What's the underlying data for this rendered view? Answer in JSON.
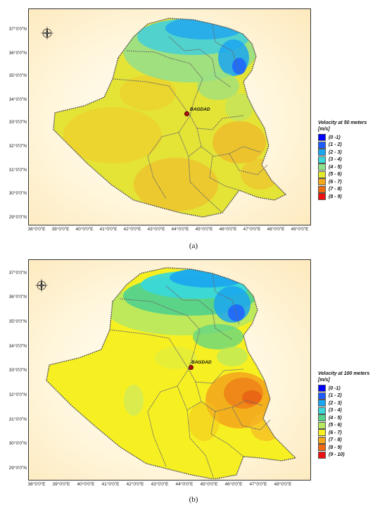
{
  "panels": [
    {
      "caption": "(a)",
      "city": "BAGDAD",
      "legend_title": "Velocity at 50 meters",
      "legend_unit": "[m/s]",
      "legend": [
        {
          "label": "(0 -1)",
          "color": "#0000ff"
        },
        {
          "label": "(1 - 2)",
          "color": "#1e5cff"
        },
        {
          "label": "(2 - 3)",
          "color": "#1aa6f0"
        },
        {
          "label": "(3 - 4)",
          "color": "#3ad8d8"
        },
        {
          "label": "(4 - 5)",
          "color": "#8fe08a"
        },
        {
          "label": "(5 - 6)",
          "color": "#e2ea2a"
        },
        {
          "label": "(6 - 7)",
          "color": "#f4a81c"
        },
        {
          "label": "(7 - 8)",
          "color": "#ee6a10"
        },
        {
          "label": "(8 - 9)",
          "color": "#ee1010"
        }
      ],
      "lat_labels": [
        "37°0'0\"N",
        "36°0'0\"N",
        "35°0'0\"N",
        "34°0'0\"N",
        "33°0'0\"N",
        "32°0'0\"N",
        "31°0'0\"N",
        "30°0'0\"N",
        "29°0'0\"N"
      ],
      "lon_labels": [
        "38°0'0\"E",
        "39°0'0\"E",
        "40°0'0\"E",
        "41°0'0\"E",
        "42°0'0\"E",
        "43°0'0\"E",
        "44°0'0\"E",
        "45°0'0\"E",
        "46°0'0\"E",
        "47°0'0\"E",
        "48°0'0\"E",
        "49°0'0\"E"
      ]
    },
    {
      "caption": "(b)",
      "city": "BAGDAD",
      "legend_title": "Velocity at 100  meters",
      "legend_unit": "[m/s]",
      "legend": [
        {
          "label": "(0 -1)",
          "color": "#0000ff"
        },
        {
          "label": "(1 - 2)",
          "color": "#1e5cff"
        },
        {
          "label": "(2 - 3)",
          "color": "#1aa6f0"
        },
        {
          "label": "(3 - 4)",
          "color": "#3ad8d8"
        },
        {
          "label": "(4 - 5)",
          "color": "#55d38a"
        },
        {
          "label": "(5 - 6)",
          "color": "#b8e860"
        },
        {
          "label": "(6 - 7)",
          "color": "#f8f020"
        },
        {
          "label": "(7 - 8)",
          "color": "#f4a81c"
        },
        {
          "label": "(8 - 9)",
          "color": "#ee6a10"
        },
        {
          "label": "(9 - 10)",
          "color": "#ee1010"
        }
      ],
      "lat_labels": [
        "37°0'0\"N",
        "36°0'0\"N",
        "35°0'0\"N",
        "34°0'0\"N",
        "33°0'0\"N",
        "32°0'0\"N",
        "31°0'0\"N",
        "30°0'0\"N",
        "29°0'0\"N"
      ],
      "lon_labels": [
        "38°0'0\"E",
        "39°0'0\"E",
        "40°0'0\"E",
        "41°0'0\"E",
        "42°0'0\"E",
        "43°0'0\"E",
        "44°0'0\"E",
        "45°0'0\"E",
        "46°0'0\"E",
        "47°0'0\"E",
        "48°0'0\"E"
      ]
    }
  ]
}
